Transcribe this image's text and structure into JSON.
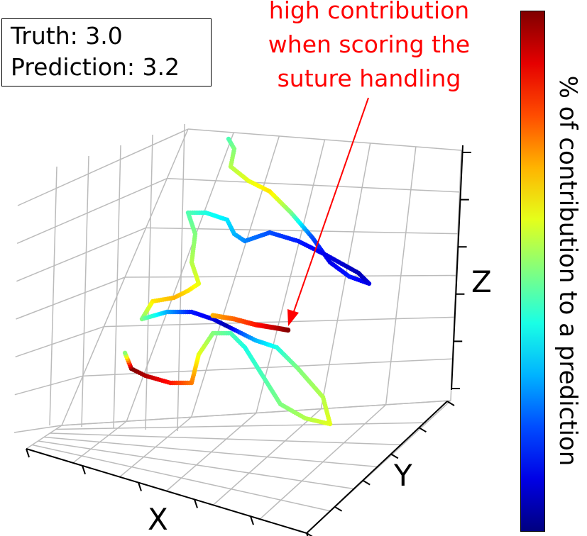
{
  "info": {
    "truth": "Truth: 3.0",
    "prediction": "Prediction: 3.2"
  },
  "annotation": [
    "high contribution",
    "when scoring the",
    "suture handling"
  ],
  "colorbar_label": "% of contribution to a prediction",
  "chart_data": {
    "type": "scatter",
    "projection": "3d",
    "axes": {
      "xlabel": "X",
      "ylabel": "Y",
      "zlabel": "Z"
    },
    "tick_labels_shown": false,
    "grid": true,
    "colormap": "jet",
    "colors": {
      "annotation": "#ff0000",
      "arrow": "#ff0000",
      "grid": "#bbbbbb"
    },
    "note": "",
    "trajectory_color_values": [
      0.45,
      0.5,
      0.55,
      0.6,
      0.65,
      0.5,
      0.2,
      0.1,
      0.15,
      0.1,
      0.05,
      0.1,
      0.15,
      0.2,
      0.25,
      0.3,
      0.35,
      0.4,
      0.45,
      0.5,
      0.55,
      0.6,
      0.65,
      0.7,
      0.65,
      0.5,
      0.3,
      0.15,
      0.1,
      0.05,
      0.2,
      0.3,
      0.4,
      0.5,
      0.55,
      0.6,
      0.55,
      0.5,
      0.45,
      0.4,
      0.45,
      0.5,
      0.6,
      0.75,
      0.85,
      0.95,
      1.0
    ]
  }
}
